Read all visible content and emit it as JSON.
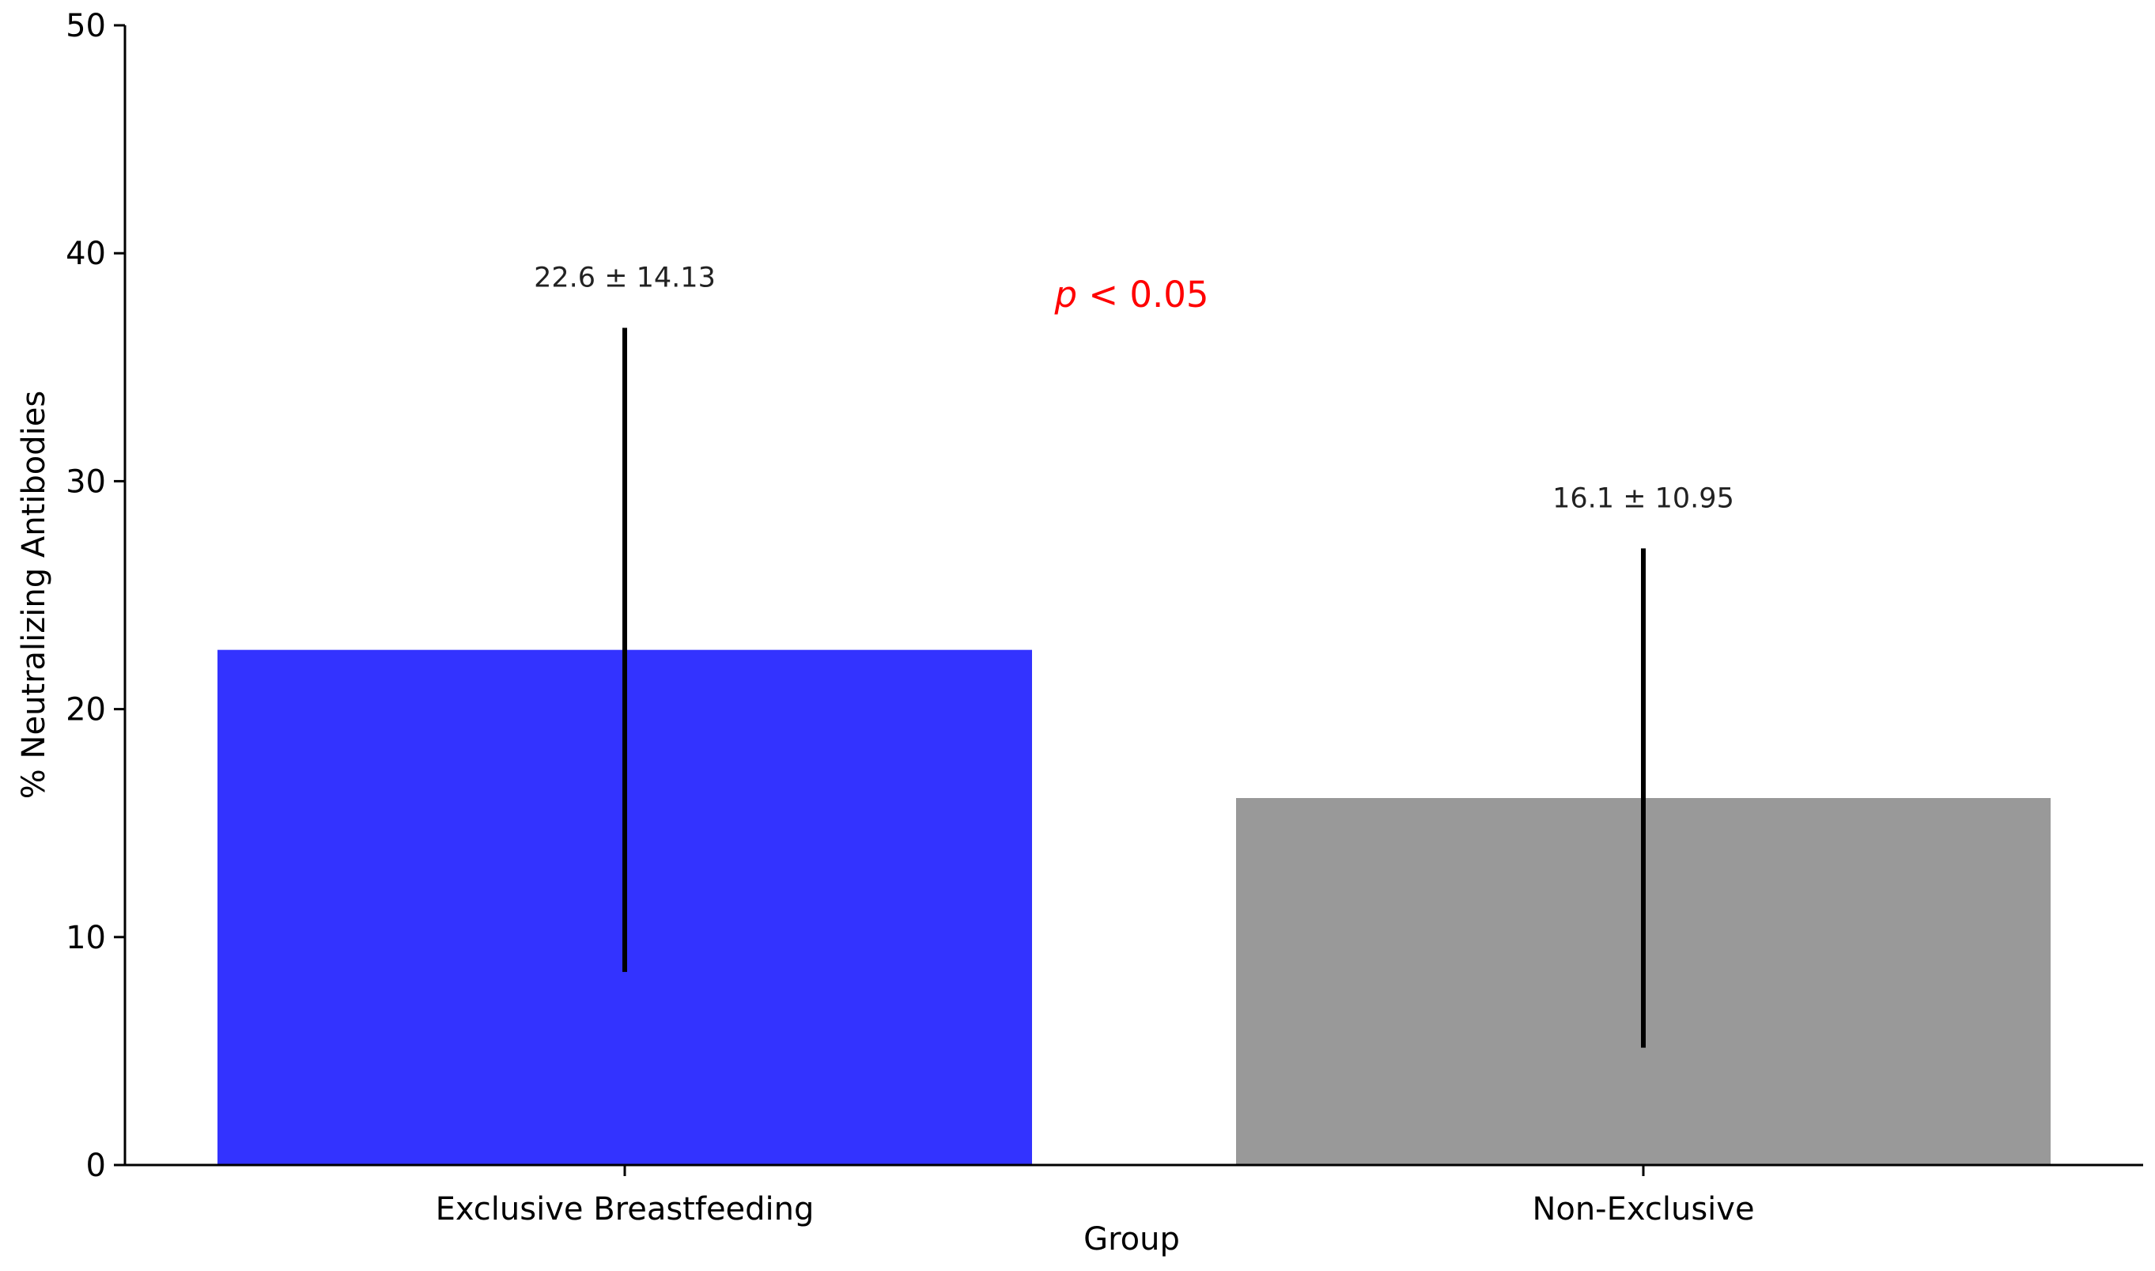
{
  "chart_data": {
    "type": "bar",
    "title": "",
    "xlabel": "Group",
    "ylabel": "% Neutralizing Antibodies",
    "categories": [
      "Exclusive Breastfeeding",
      "Non-Exclusive"
    ],
    "values": [
      22.6,
      16.1
    ],
    "errors": [
      14.13,
      10.95
    ],
    "bar_colors": [
      "#3333ff",
      "#999999"
    ],
    "data_labels": [
      "22.6 ± 14.13",
      "16.1 ± 10.95"
    ],
    "ylim": [
      0,
      50
    ],
    "yticks": [
      "0",
      "10",
      "20",
      "30",
      "40",
      "50"
    ],
    "grid": false,
    "annotation": {
      "p_symbol": "p",
      "rest": " < 0.05",
      "color": "#ff0000"
    }
  }
}
